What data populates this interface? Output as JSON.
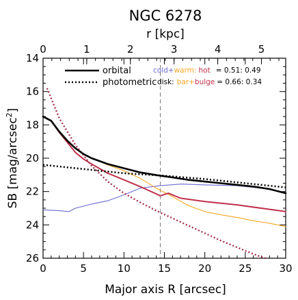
{
  "chart_data": {
    "type": "line",
    "title": "NGC 6278",
    "xlabel": "Major axis R [arcsec]",
    "x2label": "r [kpc]",
    "ylabel": "SB [mag/arcsec",
    "ylabel_sup": "2",
    "ylabel_close": "]",
    "xlim": [
      0,
      30
    ],
    "ylim": [
      26,
      14
    ],
    "x_ticks": [
      0,
      5,
      10,
      15,
      20,
      25,
      30
    ],
    "x_tick_labels": [
      "0",
      "5",
      "10",
      "15",
      "20",
      "25",
      "30"
    ],
    "y_ticks": [
      14,
      16,
      18,
      20,
      22,
      24,
      26
    ],
    "y_tick_labels": [
      "14",
      "16",
      "18",
      "20",
      "22",
      "24",
      "26"
    ],
    "x2_ticks_kpc": [
      0,
      1,
      2,
      3,
      4,
      5
    ],
    "x2_tick_labels": [
      "0",
      "1",
      "2",
      "3",
      "4",
      "5"
    ],
    "x2_arcsec_per_kpc": 5.4,
    "vline_x": 14.5,
    "legend": {
      "orbital": "orbital",
      "photometric": "photometric"
    },
    "fractions": {
      "row1": {
        "cold": "cold",
        "plus1": "+",
        "warm": "warm",
        "colon1": ":",
        "hot": "hot",
        "value": "= 0.51: 0.49"
      },
      "row2": {
        "prefix": "disk:",
        "bar": "bar",
        "plus2": "+",
        "bulge": "bulge",
        "value": "= 0.66: 0.34"
      }
    },
    "colors": {
      "orbital": "#000000",
      "photometric": "#000000",
      "cold": "#6b6bd0",
      "warm": "#f5a623",
      "hot": "#c0304a",
      "bar": "#f5a623",
      "bulge": "#a3304a",
      "bulge_dotted": "#a3304a"
    },
    "series": [
      {
        "name": "orbital",
        "style": "solid-thick",
        "color": "#000000",
        "x": [
          0,
          1,
          2,
          3,
          4,
          5,
          6,
          8,
          10,
          12,
          14.5,
          16,
          18,
          20,
          22,
          24,
          26,
          28,
          30
        ],
        "y": [
          17.5,
          17.75,
          18.4,
          18.95,
          19.4,
          19.75,
          20.0,
          20.35,
          20.6,
          20.85,
          21.05,
          21.15,
          21.3,
          21.4,
          21.5,
          21.6,
          21.7,
          21.85,
          22.1
        ]
      },
      {
        "name": "photometric",
        "style": "dotted-thick",
        "color": "#000000",
        "x": [
          0,
          5,
          10,
          15,
          20,
          25,
          30
        ],
        "y": [
          20.4,
          20.65,
          20.9,
          21.05,
          21.25,
          21.5,
          21.75
        ]
      },
      {
        "name": "cold",
        "style": "thin",
        "color": "#6b6bd0",
        "x": [
          0,
          2,
          3.2,
          4,
          6,
          8,
          10,
          12,
          14.5,
          17,
          20,
          24,
          27,
          30
        ],
        "y": [
          23.1,
          23.15,
          23.2,
          23.0,
          22.75,
          22.55,
          22.2,
          21.8,
          21.65,
          21.55,
          21.6,
          21.65,
          21.8,
          22.05
        ]
      },
      {
        "name": "warm",
        "style": "thin",
        "color": "#f5a623",
        "x": [
          0,
          1,
          2,
          3,
          4,
          5,
          6,
          8,
          10,
          12,
          14,
          16,
          18,
          20,
          22,
          24,
          26,
          28,
          30
        ],
        "y": [
          17.5,
          17.75,
          18.4,
          18.95,
          19.4,
          19.75,
          20.0,
          20.4,
          20.75,
          21.2,
          21.8,
          22.3,
          22.85,
          23.2,
          23.4,
          23.55,
          23.75,
          23.9,
          24.1
        ]
      },
      {
        "name": "hot",
        "style": "medium",
        "color": "#c0304a",
        "x": [
          0,
          1,
          2,
          3,
          4,
          5,
          6,
          8,
          10,
          12,
          14.5,
          15.5,
          17,
          20,
          24,
          27,
          30
        ],
        "y": [
          17.5,
          17.75,
          18.45,
          19.05,
          19.65,
          20.05,
          20.35,
          20.9,
          21.3,
          21.7,
          22.25,
          22.1,
          22.4,
          22.6,
          22.8,
          23.0,
          23.2
        ]
      },
      {
        "name": "bulge",
        "style": "dotted-medium",
        "color": "#a3304a",
        "x": [
          0.5,
          2,
          4,
          6,
          8,
          10,
          12,
          14,
          16,
          18,
          20,
          22,
          24,
          26,
          27.5
        ],
        "y": [
          15.8,
          17.6,
          19.2,
          20.45,
          21.4,
          22.1,
          22.65,
          23.15,
          23.6,
          24.05,
          24.5,
          24.95,
          25.35,
          25.75,
          26.0
        ]
      }
    ]
  }
}
